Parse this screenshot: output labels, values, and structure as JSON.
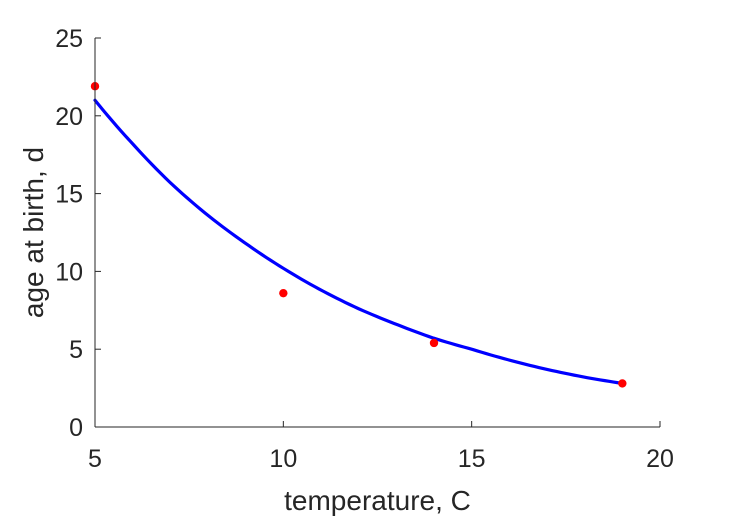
{
  "chart_data": {
    "type": "scatter",
    "title": "",
    "xlabel": "temperature, C",
    "ylabel": "age at birth, d",
    "xlim": [
      5,
      20
    ],
    "ylim": [
      0,
      25
    ],
    "xticks": [
      5,
      10,
      15,
      20
    ],
    "yticks": [
      0,
      5,
      10,
      15,
      20,
      25
    ],
    "xtick_labels": [
      "5",
      "10",
      "15",
      "20"
    ],
    "ytick_labels": [
      "0",
      "5",
      "10",
      "15",
      "20",
      "25"
    ],
    "grid": false,
    "series": [
      {
        "kind": "points",
        "color": "#ff0000",
        "x": [
          5,
          10,
          14,
          19
        ],
        "y": [
          21.9,
          8.6,
          5.4,
          2.8
        ]
      },
      {
        "kind": "line",
        "color": "#0000ff",
        "x": [
          5,
          6,
          7,
          8,
          9,
          10,
          11,
          12,
          13,
          14,
          15,
          16,
          17,
          18,
          19
        ],
        "y": [
          21.0,
          18.2,
          15.7,
          13.6,
          11.8,
          10.2,
          8.8,
          7.6,
          6.6,
          5.7,
          5.0,
          4.3,
          3.7,
          3.2,
          2.8
        ]
      }
    ]
  }
}
